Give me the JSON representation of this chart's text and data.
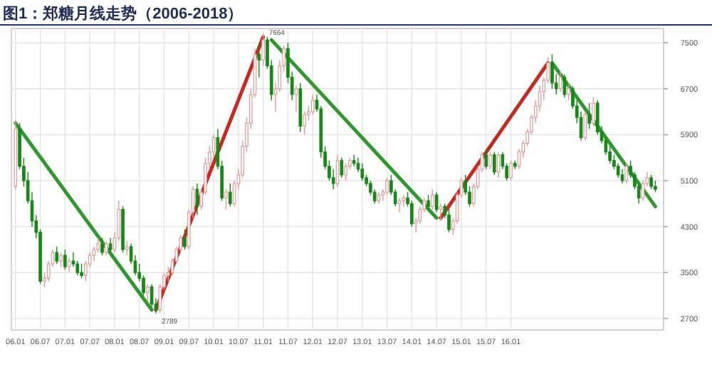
{
  "chart_data": {
    "type": "candlestick",
    "title": "图1：郑糖月线走势（2006-2018）",
    "x": [
      "2006-01",
      "2006-02",
      "2006-03",
      "2006-04",
      "2006-05",
      "2006-06",
      "2006-07",
      "2006-08",
      "2006-09",
      "2006-10",
      "2006-11",
      "2006-12",
      "2007-01",
      "2007-02",
      "2007-03",
      "2007-04",
      "2007-05",
      "2007-06",
      "2007-07",
      "2007-08",
      "2007-09",
      "2007-10",
      "2007-11",
      "2007-12",
      "2008-01",
      "2008-02",
      "2008-03",
      "2008-04",
      "2008-05",
      "2008-06",
      "2008-07",
      "2008-08",
      "2008-09",
      "2008-10",
      "2008-11",
      "2008-12",
      "2009-01",
      "2009-02",
      "2009-03",
      "2009-04",
      "2009-05",
      "2009-06",
      "2009-07",
      "2009-08",
      "2009-09",
      "2009-10",
      "2009-11",
      "2009-12",
      "2010-01",
      "2010-02",
      "2010-03",
      "2010-04",
      "2010-05",
      "2010-06",
      "2010-07",
      "2010-08",
      "2010-09",
      "2010-10",
      "2010-11",
      "2010-12",
      "2011-01",
      "2011-02",
      "2011-03",
      "2011-04",
      "2011-05",
      "2011-06",
      "2011-07",
      "2011-08",
      "2011-09",
      "2011-10",
      "2011-11",
      "2011-12",
      "2012-01",
      "2012-02",
      "2012-03",
      "2012-04",
      "2012-05",
      "2012-06",
      "2012-07",
      "2012-08",
      "2012-09",
      "2012-10",
      "2012-11",
      "2012-12",
      "2013-01",
      "2013-02",
      "2013-03",
      "2013-04",
      "2013-05",
      "2013-06",
      "2013-07",
      "2013-08",
      "2013-09",
      "2013-10",
      "2013-11",
      "2013-12",
      "2014-01",
      "2014-02",
      "2014-03",
      "2014-04",
      "2014-05",
      "2014-06",
      "2014-07",
      "2014-08",
      "2014-09",
      "2014-10",
      "2014-11",
      "2014-12",
      "2015-01",
      "2015-02",
      "2015-03",
      "2015-04",
      "2015-05",
      "2015-06",
      "2015-07",
      "2015-08",
      "2015-09",
      "2015-10",
      "2015-11",
      "2015-12",
      "2016-01",
      "2016-02",
      "2016-03",
      "2016-04",
      "2016-05",
      "2016-06",
      "2016-07",
      "2016-08",
      "2016-09",
      "2016-10",
      "2016-11",
      "2016-12",
      "2017-01",
      "2017-02",
      "2017-03",
      "2017-04",
      "2017-05",
      "2017-06",
      "2017-07",
      "2017-08",
      "2017-09",
      "2017-10",
      "2017-11",
      "2017-12",
      "2018-01",
      "2018-02",
      "2018-03",
      "2018-04",
      "2018-05",
      "2018-06",
      "2018-07",
      "2018-08",
      "2018-09",
      "2018-10",
      "2018-11",
      "2018-12"
    ],
    "ohlc": [
      [
        5000,
        6150,
        4950,
        6000
      ],
      [
        6000,
        6100,
        5300,
        5350
      ],
      [
        5350,
        5500,
        5000,
        5100
      ],
      [
        5100,
        5250,
        4700,
        4750
      ],
      [
        4750,
        4900,
        4300,
        4400
      ],
      [
        4400,
        4500,
        4100,
        4200
      ],
      [
        4200,
        4250,
        3300,
        3350
      ],
      [
        3350,
        3500,
        3250,
        3400
      ],
      [
        3400,
        3700,
        3350,
        3650
      ],
      [
        3650,
        3900,
        3600,
        3850
      ],
      [
        3850,
        3950,
        3650,
        3700
      ],
      [
        3700,
        3850,
        3600,
        3800
      ],
      [
        3800,
        3900,
        3550,
        3600
      ],
      [
        3600,
        3750,
        3500,
        3700
      ],
      [
        3700,
        3850,
        3600,
        3650
      ],
      [
        3650,
        3700,
        3450,
        3500
      ],
      [
        3500,
        3650,
        3400,
        3450
      ],
      [
        3450,
        3700,
        3350,
        3650
      ],
      [
        3650,
        3850,
        3600,
        3800
      ],
      [
        3800,
        3950,
        3700,
        3900
      ],
      [
        3900,
        4100,
        3850,
        4000
      ],
      [
        4000,
        4100,
        3800,
        3850
      ],
      [
        3850,
        4050,
        3800,
        4000
      ],
      [
        4000,
        4100,
        3850,
        3900
      ],
      [
        3900,
        4200,
        3850,
        4100
      ],
      [
        4100,
        4750,
        4050,
        4600
      ],
      [
        4600,
        4650,
        3850,
        3900
      ],
      [
        3900,
        4050,
        3800,
        3950
      ],
      [
        3950,
        4000,
        3650,
        3700
      ],
      [
        3700,
        3800,
        3450,
        3500
      ],
      [
        3500,
        3650,
        3350,
        3400
      ],
      [
        3400,
        3450,
        3100,
        3150
      ],
      [
        3150,
        3300,
        3000,
        3250
      ],
      [
        3250,
        3300,
        2900,
        2950
      ],
      [
        2950,
        3050,
        2789,
        2850
      ],
      [
        2850,
        3300,
        2800,
        3250
      ],
      [
        3250,
        3500,
        3200,
        3450
      ],
      [
        3450,
        3600,
        3350,
        3500
      ],
      [
        3500,
        3750,
        3450,
        3700
      ],
      [
        3700,
        3950,
        3650,
        3900
      ],
      [
        3900,
        4150,
        3850,
        4100
      ],
      [
        4100,
        4250,
        3900,
        3950
      ],
      [
        3950,
        4600,
        3900,
        4550
      ],
      [
        4550,
        5000,
        4450,
        4950
      ],
      [
        4950,
        5050,
        4500,
        4650
      ],
      [
        4650,
        4950,
        4600,
        4900
      ],
      [
        4900,
        5500,
        4850,
        5400
      ],
      [
        5400,
        5700,
        5300,
        5600
      ],
      [
        5600,
        5900,
        5500,
        5850
      ],
      [
        5850,
        6000,
        5300,
        5350
      ],
      [
        5350,
        5450,
        4750,
        4800
      ],
      [
        4800,
        4950,
        4600,
        4900
      ],
      [
        4900,
        5050,
        4650,
        4700
      ],
      [
        4700,
        5100,
        4650,
        5050
      ],
      [
        5050,
        5300,
        4950,
        5200
      ],
      [
        5200,
        5800,
        5150,
        5700
      ],
      [
        5700,
        6200,
        5600,
        6100
      ],
      [
        6100,
        6700,
        6000,
        6600
      ],
      [
        6600,
        7400,
        6550,
        7300
      ],
      [
        7300,
        7500,
        6900,
        7200
      ],
      [
        7200,
        7664,
        7100,
        7550
      ],
      [
        7550,
        7600,
        7050,
        7100
      ],
      [
        7100,
        7200,
        6500,
        6600
      ],
      [
        6600,
        6800,
        6300,
        6700
      ],
      [
        6700,
        7200,
        6650,
        7100
      ],
      [
        7100,
        7450,
        7000,
        7400
      ],
      [
        7400,
        7500,
        6800,
        6900
      ],
      [
        6900,
        7000,
        6500,
        6600
      ],
      [
        6600,
        6750,
        6300,
        6700
      ],
      [
        6700,
        6800,
        5950,
        6050
      ],
      [
        6050,
        6300,
        5900,
        6250
      ],
      [
        6250,
        6400,
        6150,
        6300
      ],
      [
        6300,
        6600,
        6250,
        6500
      ],
      [
        6500,
        6600,
        6300,
        6350
      ],
      [
        6350,
        6400,
        5500,
        5600
      ],
      [
        5600,
        5700,
        5300,
        5350
      ],
      [
        5350,
        5450,
        5100,
        5150
      ],
      [
        5150,
        5300,
        4950,
        5050
      ],
      [
        5050,
        5550,
        5000,
        5450
      ],
      [
        5450,
        5500,
        5150,
        5200
      ],
      [
        5200,
        5400,
        5100,
        5350
      ],
      [
        5350,
        5500,
        5300,
        5450
      ],
      [
        5450,
        5550,
        5350,
        5400
      ],
      [
        5400,
        5500,
        5250,
        5300
      ],
      [
        5300,
        5400,
        5100,
        5150
      ],
      [
        5150,
        5200,
        5000,
        5050
      ],
      [
        5050,
        5100,
        4850,
        4900
      ],
      [
        4900,
        4950,
        4700,
        4750
      ],
      [
        4750,
        4900,
        4700,
        4850
      ],
      [
        4850,
        4950,
        4750,
        4900
      ],
      [
        4900,
        5150,
        4850,
        5100
      ],
      [
        5100,
        5200,
        4850,
        4900
      ],
      [
        4900,
        4950,
        4650,
        4700
      ],
      [
        4700,
        4800,
        4550,
        4750
      ],
      [
        4750,
        4850,
        4650,
        4800
      ],
      [
        4800,
        4900,
        4650,
        4700
      ],
      [
        4700,
        4750,
        4300,
        4350
      ],
      [
        4350,
        4450,
        4200,
        4400
      ],
      [
        4400,
        4650,
        4350,
        4600
      ],
      [
        4600,
        4800,
        4550,
        4750
      ],
      [
        4750,
        4850,
        4600,
        4650
      ],
      [
        4650,
        4950,
        4600,
        4850
      ],
      [
        4850,
        4900,
        4550,
        4600
      ],
      [
        4600,
        4700,
        4400,
        4650
      ],
      [
        4650,
        4700,
        4450,
        4500
      ],
      [
        4500,
        4600,
        4200,
        4250
      ],
      [
        4250,
        4450,
        4150,
        4400
      ],
      [
        4400,
        4900,
        4350,
        4850
      ],
      [
        4850,
        5150,
        4800,
        5100
      ],
      [
        5100,
        5200,
        4850,
        4900
      ],
      [
        4900,
        5000,
        4650,
        4700
      ],
      [
        4700,
        5050,
        4650,
        5000
      ],
      [
        5000,
        5350,
        4950,
        5300
      ],
      [
        5300,
        5600,
        5250,
        5550
      ],
      [
        5550,
        5650,
        5300,
        5350
      ],
      [
        5350,
        5600,
        5300,
        5550
      ],
      [
        5550,
        5600,
        5200,
        5250
      ],
      [
        5250,
        5600,
        5150,
        5550
      ],
      [
        5550,
        5600,
        5300,
        5350
      ],
      [
        5350,
        5400,
        5100,
        5150
      ],
      [
        5150,
        5450,
        5100,
        5400
      ],
      [
        5400,
        5450,
        5300,
        5350
      ],
      [
        5350,
        5650,
        5300,
        5600
      ],
      [
        5600,
        5800,
        5500,
        5750
      ],
      [
        5750,
        6000,
        5700,
        5950
      ],
      [
        5950,
        6250,
        5900,
        6200
      ],
      [
        6200,
        6500,
        6100,
        6400
      ],
      [
        6400,
        6750,
        6300,
        6650
      ],
      [
        6650,
        6900,
        6500,
        6850
      ],
      [
        6850,
        7250,
        6800,
        7150
      ],
      [
        7150,
        7300,
        6700,
        6800
      ],
      [
        6800,
        6950,
        6600,
        6700
      ],
      [
        6700,
        7000,
        6650,
        6900
      ],
      [
        6900,
        6950,
        6550,
        6600
      ],
      [
        6600,
        6800,
        6500,
        6700
      ],
      [
        6700,
        6750,
        6350,
        6400
      ],
      [
        6400,
        6500,
        6100,
        6200
      ],
      [
        6200,
        6300,
        5800,
        5850
      ],
      [
        5850,
        6300,
        5800,
        6250
      ],
      [
        6250,
        6450,
        6000,
        6100
      ],
      [
        6100,
        6550,
        6050,
        6450
      ],
      [
        6450,
        6500,
        5900,
        5950
      ],
      [
        5950,
        6050,
        5750,
        5800
      ],
      [
        5800,
        5850,
        5550,
        5600
      ],
      [
        5600,
        5700,
        5400,
        5450
      ],
      [
        5450,
        5550,
        5300,
        5350
      ],
      [
        5350,
        5400,
        5150,
        5200
      ],
      [
        5200,
        5300,
        5050,
        5100
      ],
      [
        5100,
        5400,
        5050,
        5350
      ],
      [
        5350,
        5450,
        5150,
        5200
      ],
      [
        5200,
        5250,
        4950,
        5000
      ],
      [
        5000,
        5050,
        4700,
        4800
      ],
      [
        4800,
        5100,
        4750,
        5050
      ],
      [
        5050,
        5250,
        5000,
        5150
      ],
      [
        5150,
        5200,
        4950,
        5000
      ],
      [
        5000,
        5100,
        4900,
        4950
      ]
    ],
    "series": [
      {
        "type": "line",
        "color": "#2e9a2e",
        "x": [
          "2006-01",
          "2008-10"
        ],
        "values": [
          6100,
          2850
        ]
      },
      {
        "type": "line",
        "color": "#c8281e",
        "x": [
          "2008-11",
          "2011-01"
        ],
        "values": [
          2850,
          7600
        ]
      },
      {
        "type": "line",
        "color": "#2e9a2e",
        "x": [
          "2011-03",
          "2014-07"
        ],
        "values": [
          7550,
          4450
        ]
      },
      {
        "type": "line",
        "color": "#c8281e",
        "x": [
          "2014-08",
          "2016-10"
        ],
        "values": [
          4450,
          7150
        ]
      },
      {
        "type": "line",
        "color": "#2e9a2e",
        "x": [
          "2016-11",
          "2018-12"
        ],
        "values": [
          7150,
          4650
        ]
      }
    ],
    "xlim": [
      "2005-12",
      "2019-02"
    ],
    "ylim": [
      2500,
      7750
    ],
    "xticks": [
      {
        "value": "2006-01",
        "label": "06.01"
      },
      {
        "value": "2006-07",
        "label": "06.07"
      },
      {
        "value": "2007-01",
        "label": "07.01"
      },
      {
        "value": "2007-07",
        "label": "07.07"
      },
      {
        "value": "2008-01",
        "label": "08.01"
      },
      {
        "value": "2008-07",
        "label": "08.07"
      },
      {
        "value": "2009-01",
        "label": "09.01"
      },
      {
        "value": "2009-07",
        "label": "09.07"
      },
      {
        "value": "2010-01",
        "label": "10.01"
      },
      {
        "value": "2010-07",
        "label": "10.07"
      },
      {
        "value": "2011-01",
        "label": "11.01"
      },
      {
        "value": "2011-07",
        "label": "11.07"
      },
      {
        "value": "2012-01",
        "label": "12.01"
      },
      {
        "value": "2012-07",
        "label": "12.07"
      },
      {
        "value": "2013-01",
        "label": "13.01"
      },
      {
        "value": "2013-07",
        "label": "13.07"
      },
      {
        "value": "2014-01",
        "label": "14.01"
      },
      {
        "value": "2014-07",
        "label": "14.07"
      },
      {
        "value": "2015-01",
        "label": "15.01"
      },
      {
        "value": "2015-07",
        "label": "15.07"
      },
      {
        "value": "2016-01",
        "label": "16.01"
      }
    ],
    "yticks": [
      2700,
      3500,
      4300,
      5100,
      5900,
      6700,
      7500
    ],
    "grid": true,
    "annotations": [
      {
        "text": "2789",
        "x": "2008-11",
        "y": 2789
      },
      {
        "text": "7664",
        "x": "2011-01",
        "y": 7664
      }
    ]
  }
}
